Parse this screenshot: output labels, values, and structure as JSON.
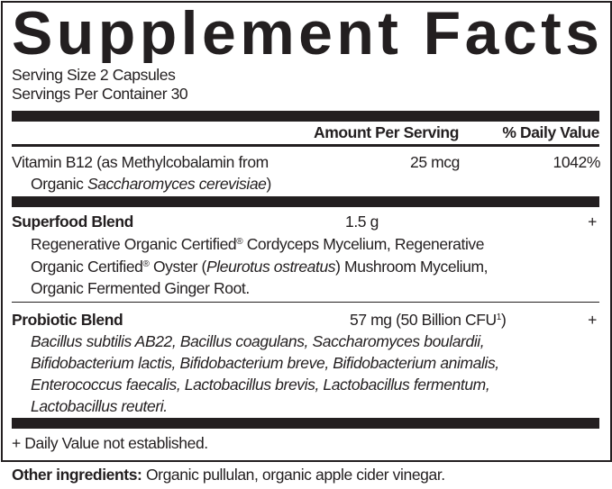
{
  "title": "Supplement Facts",
  "serving_size": "Serving Size 2 Capsules",
  "servings_per_container": "Servings Per Container 30",
  "header": {
    "amount": "Amount Per Serving",
    "daily_value": "% Daily Value"
  },
  "vitamin": {
    "lines": [
      [
        {
          "t": "Vitamin B12 (as Methylcobalamin from"
        }
      ],
      [
        {
          "t": "Organic "
        },
        {
          "t": "Saccharomyces cerevisiae",
          "s": "i"
        },
        {
          "t": ")"
        }
      ]
    ],
    "amount": "25 mcg",
    "dv": "1042%"
  },
  "superfood": {
    "name": "Superfood Blend",
    "amount": "1.5 g",
    "dv": "+",
    "lines": [
      [
        {
          "t": "Regenerative Organic Certified"
        },
        {
          "t": "®",
          "s": "sup"
        },
        {
          "t": " Cordyceps Mycelium, Regenerative"
        }
      ],
      [
        {
          "t": "Organic Certified"
        },
        {
          "t": "®",
          "s": "sup"
        },
        {
          "t": " Oyster ("
        },
        {
          "t": "Pleurotus ostreatus",
          "s": "i"
        },
        {
          "t": ") Mushroom Mycelium,"
        }
      ],
      [
        {
          "t": "Organic Fermented Ginger Root."
        }
      ]
    ]
  },
  "probiotic": {
    "name": "Probiotic Blend",
    "amount": "57 mg (50 Billion CFU",
    "amount_sup": "1",
    "amount_end": ")",
    "dv": "+",
    "lines": [
      [
        {
          "t": "Bacillus subtilis",
          "s": "i"
        },
        {
          "t": " AB22, ",
          "s": "i"
        },
        {
          "t": "Bacillus coagulans, Saccharomyces boulardii,",
          "s": "i"
        }
      ],
      [
        {
          "t": "Bifidobacterium lactis, Bifidobacterium breve, Bifidobacterium animalis,",
          "s": "i"
        }
      ],
      [
        {
          "t": "Enterococcus faecalis, Lactobacillus brevis, Lactobacillus fermentum,",
          "s": "i"
        }
      ],
      [
        {
          "t": "Lactobacillus reuteri.",
          "s": "i"
        }
      ]
    ]
  },
  "footnote": "+ Daily Value not established.",
  "other_ingredients": {
    "label": "Other ingredients:",
    "text": " Organic pullulan, organic apple cider vinegar."
  },
  "colors": {
    "ink": "#231f20",
    "background": "#ffffff"
  }
}
